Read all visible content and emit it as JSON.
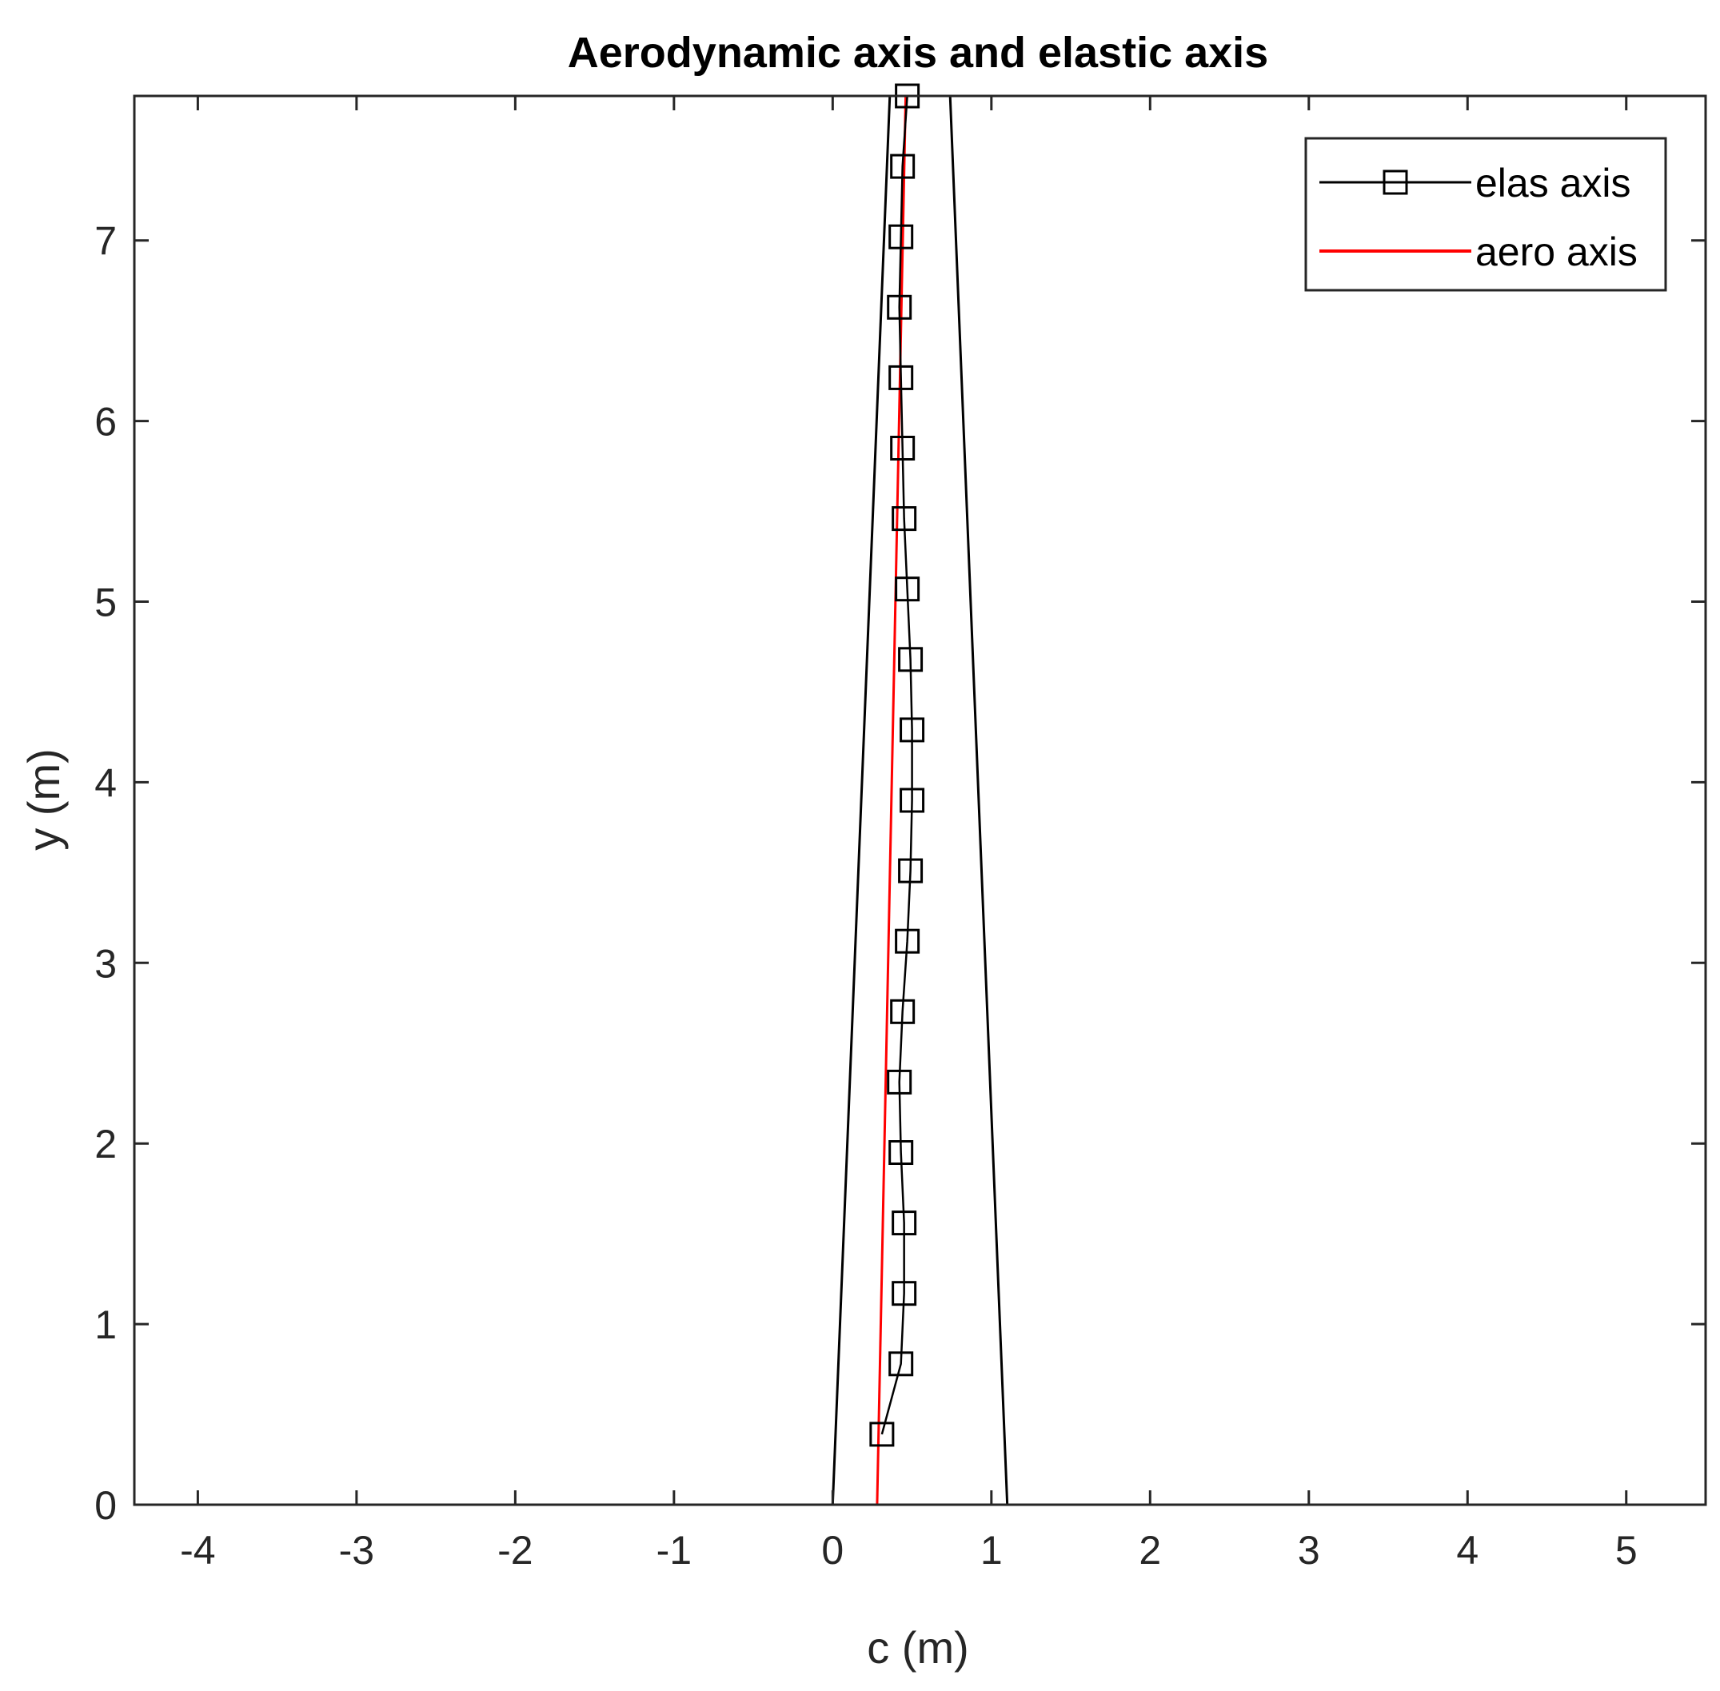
{
  "chart_data": {
    "type": "line",
    "title": "Aerodynamic axis and elastic axis",
    "xlabel": "c (m)",
    "ylabel": "y (m)",
    "xlim": [
      -4.4,
      5.5
    ],
    "ylim": [
      0,
      7.8
    ],
    "xticks": [
      -4,
      -3,
      -2,
      -1,
      0,
      1,
      2,
      3,
      4,
      5
    ],
    "yticks": [
      0,
      1,
      2,
      3,
      4,
      5,
      6,
      7
    ],
    "grid": false,
    "legend_position": "top-right",
    "series": [
      {
        "name": "elas axis",
        "color": "#000000",
        "marker": "square",
        "x": [
          0.31,
          0.43,
          0.45,
          0.45,
          0.43,
          0.42,
          0.44,
          0.47,
          0.49,
          0.5,
          0.5,
          0.49,
          0.47,
          0.45,
          0.44,
          0.43,
          0.42,
          0.43,
          0.44,
          0.47
        ],
        "y": [
          0.39,
          0.78,
          1.17,
          1.56,
          1.95,
          2.34,
          2.73,
          3.12,
          3.51,
          3.9,
          4.29,
          4.68,
          5.07,
          5.46,
          5.85,
          6.24,
          6.63,
          7.02,
          7.41,
          7.8
        ]
      },
      {
        "name": "aero axis",
        "color": "#ff0000",
        "marker": "none",
        "x": [
          0.28,
          0.46
        ],
        "y": [
          0.0,
          7.8
        ]
      }
    ],
    "wing_outline": {
      "color": "#000000",
      "x": [
        0.0,
        1.1,
        0.74,
        0.36,
        0.0
      ],
      "y": [
        0.0,
        0.0,
        7.8,
        7.8,
        0.0
      ]
    }
  }
}
